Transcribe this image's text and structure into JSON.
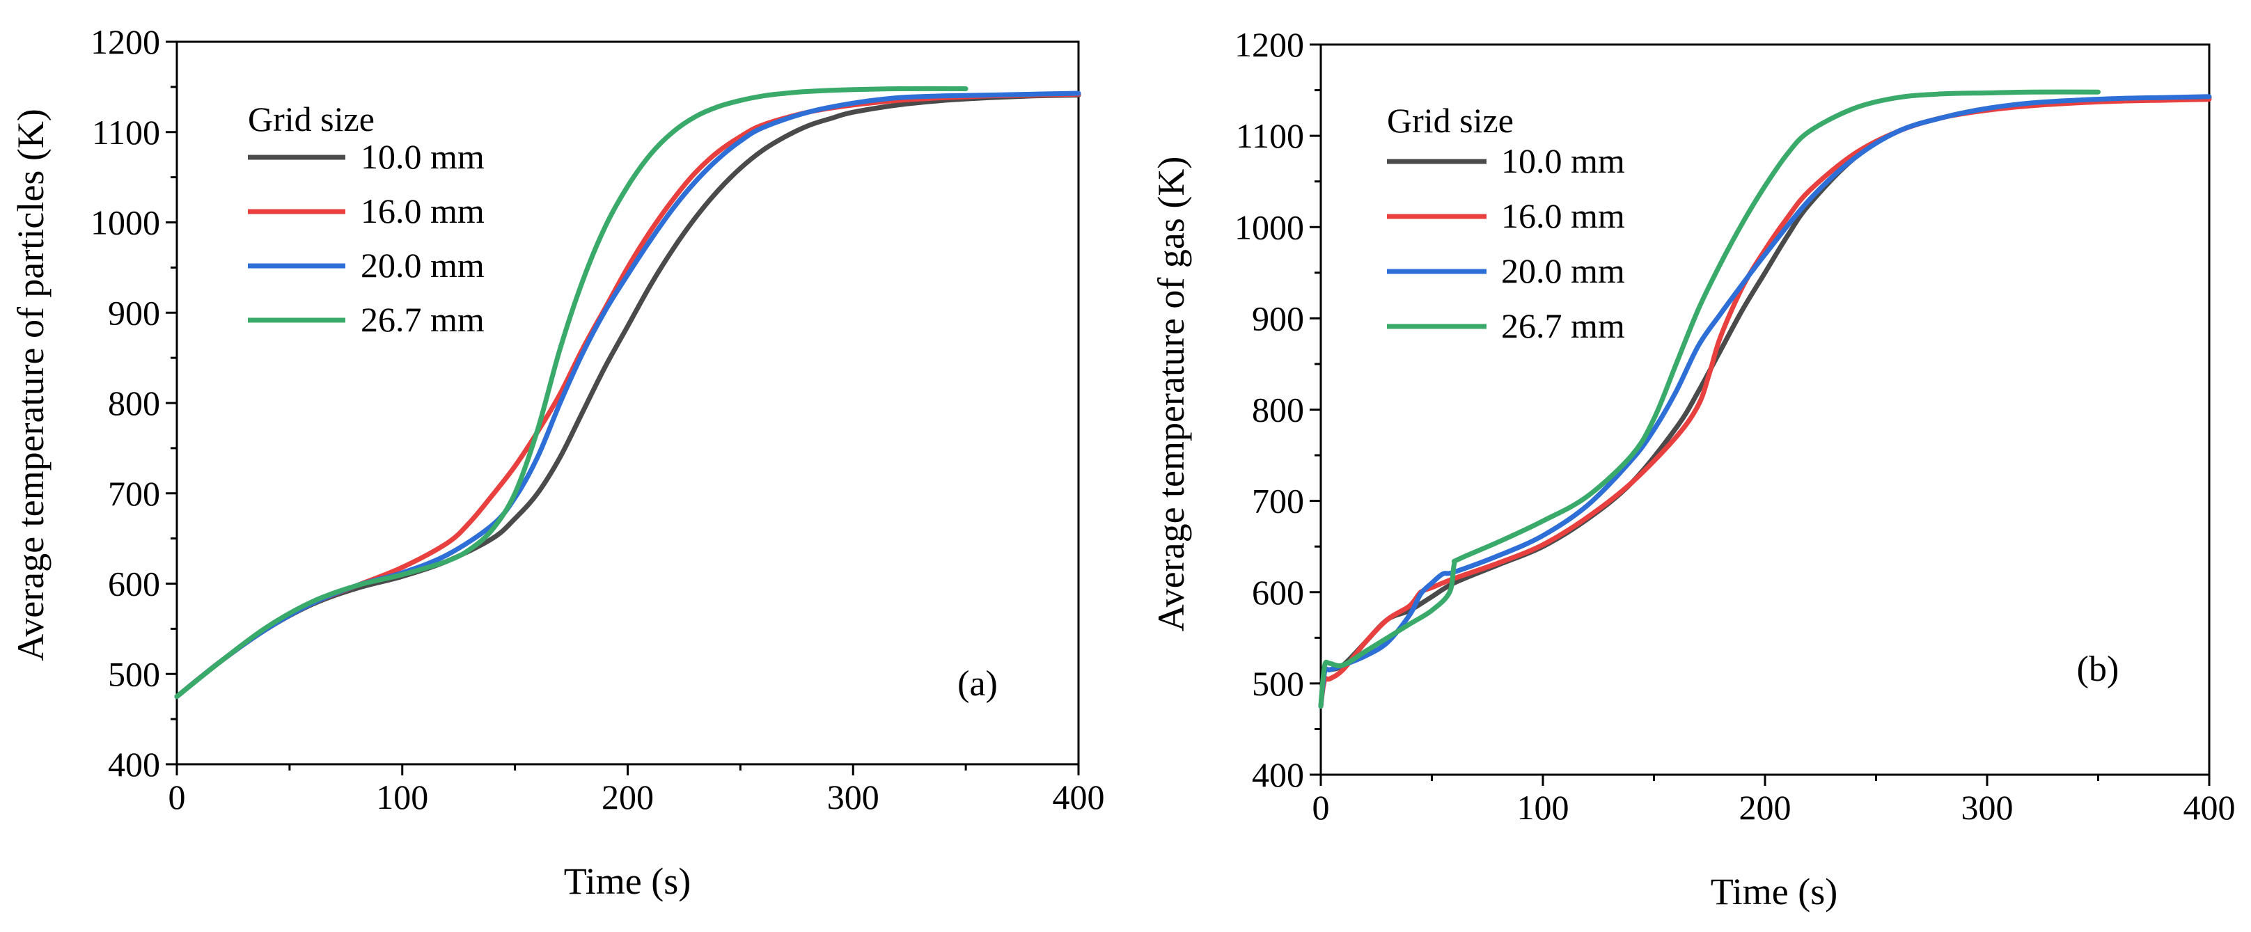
{
  "chart_data": [
    {
      "type": "line",
      "panel_label": "(a)",
      "xlabel": "Time (s)",
      "ylabel": "Average temperature of particles (K)",
      "xlim": [
        0,
        400
      ],
      "ylim": [
        400,
        1200
      ],
      "xticks": [
        0,
        100,
        200,
        300,
        400
      ],
      "yticks": [
        400,
        500,
        600,
        700,
        800,
        900,
        1000,
        1100,
        1200
      ],
      "legend_title": "Grid size",
      "legend_position": "top-left",
      "series": [
        {
          "name": "10.0 mm",
          "color": "#4a4a4a",
          "x": [
            0,
            20,
            40,
            60,
            80,
            100,
            120,
            140,
            150,
            160,
            170,
            180,
            190,
            200,
            210,
            220,
            230,
            240,
            250,
            260,
            270,
            280,
            290,
            300,
            320,
            340,
            360,
            380,
            400
          ],
          "y": [
            475,
            515,
            550,
            577,
            595,
            608,
            625,
            650,
            672,
            700,
            740,
            790,
            840,
            885,
            930,
            970,
            1005,
            1035,
            1060,
            1080,
            1095,
            1107,
            1115,
            1122,
            1130,
            1135,
            1138,
            1140,
            1141
          ]
        },
        {
          "name": "16.0 mm",
          "color": "#e8403f",
          "x": [
            0,
            20,
            40,
            60,
            80,
            100,
            120,
            130,
            140,
            150,
            160,
            170,
            180,
            190,
            200,
            210,
            220,
            230,
            240,
            250,
            260,
            280,
            300,
            320,
            340,
            360,
            380,
            400
          ],
          "y": [
            475,
            515,
            550,
            578,
            598,
            618,
            645,
            668,
            698,
            730,
            768,
            810,
            860,
            905,
            950,
            990,
            1025,
            1055,
            1078,
            1095,
            1108,
            1122,
            1130,
            1135,
            1138,
            1140,
            1141,
            1142
          ]
        },
        {
          "name": "20.0 mm",
          "color": "#2d6fd6",
          "x": [
            0,
            20,
            40,
            60,
            80,
            100,
            120,
            140,
            150,
            160,
            170,
            180,
            190,
            200,
            210,
            220,
            230,
            240,
            250,
            260,
            280,
            300,
            320,
            340,
            360,
            380,
            400
          ],
          "y": [
            475,
            515,
            550,
            578,
            598,
            612,
            632,
            665,
            695,
            740,
            800,
            855,
            902,
            942,
            980,
            1015,
            1045,
            1070,
            1090,
            1105,
            1122,
            1132,
            1138,
            1140,
            1141,
            1142,
            1143
          ]
        },
        {
          "name": "26.7 mm",
          "color": "#3aaa6a",
          "x": [
            0,
            20,
            40,
            60,
            80,
            100,
            120,
            130,
            140,
            150,
            160,
            170,
            180,
            190,
            200,
            210,
            220,
            230,
            240,
            250,
            260,
            270,
            280,
            300,
            320,
            350
          ],
          "y": [
            475,
            515,
            552,
            580,
            598,
            610,
            625,
            638,
            660,
            700,
            770,
            860,
            935,
            995,
            1040,
            1075,
            1100,
            1117,
            1128,
            1135,
            1140,
            1143,
            1145,
            1147,
            1148,
            1148
          ]
        }
      ]
    },
    {
      "type": "line",
      "panel_label": "(b)",
      "xlabel": "Time (s)",
      "ylabel": "Average temperature of gas (K)",
      "xlim": [
        0,
        400
      ],
      "ylim": [
        400,
        1200
      ],
      "xticks": [
        0,
        100,
        200,
        300,
        400
      ],
      "yticks": [
        400,
        500,
        600,
        700,
        800,
        900,
        1000,
        1100,
        1200
      ],
      "legend_title": "Grid size",
      "legend_position": "top-left",
      "series": [
        {
          "name": "10.0 mm",
          "color": "#4a4a4a",
          "x": [
            0,
            1,
            2,
            4,
            10,
            20,
            30,
            40,
            50,
            60,
            80,
            100,
            120,
            140,
            160,
            170,
            180,
            190,
            200,
            210,
            220,
            240,
            260,
            280,
            300,
            320,
            340,
            360,
            380,
            400
          ],
          "y": [
            475,
            500,
            515,
            515,
            520,
            545,
            570,
            580,
            595,
            610,
            630,
            650,
            680,
            720,
            780,
            820,
            865,
            910,
            950,
            990,
            1025,
            1075,
            1105,
            1120,
            1130,
            1135,
            1138,
            1140,
            1141,
            1142
          ]
        },
        {
          "name": "16.0 mm",
          "color": "#e8403f",
          "x": [
            0,
            1,
            2,
            4,
            10,
            20,
            30,
            40,
            45,
            50,
            60,
            80,
            100,
            120,
            140,
            160,
            170,
            175,
            180,
            190,
            200,
            210,
            220,
            240,
            260,
            280,
            300,
            320,
            340,
            360,
            380,
            400
          ],
          "y": [
            475,
            495,
            505,
            505,
            515,
            545,
            570,
            585,
            600,
            605,
            615,
            632,
            652,
            682,
            720,
            770,
            805,
            840,
            880,
            935,
            975,
            1010,
            1040,
            1080,
            1105,
            1120,
            1128,
            1133,
            1136,
            1138,
            1139,
            1140
          ]
        },
        {
          "name": "20.0 mm",
          "color": "#2d6fd6",
          "x": [
            0,
            1,
            2,
            4,
            10,
            20,
            30,
            40,
            45,
            50,
            55,
            60,
            80,
            100,
            120,
            140,
            150,
            160,
            170,
            180,
            190,
            200,
            220,
            240,
            260,
            280,
            300,
            320,
            340,
            360,
            380,
            400
          ],
          "y": [
            475,
            500,
            515,
            515,
            520,
            530,
            545,
            575,
            598,
            610,
            620,
            622,
            640,
            662,
            695,
            745,
            778,
            820,
            870,
            905,
            938,
            970,
            1030,
            1075,
            1105,
            1120,
            1130,
            1136,
            1139,
            1141,
            1142,
            1143
          ]
        },
        {
          "name": "26.7 mm",
          "color": "#3aaa6a",
          "x": [
            0,
            1,
            2,
            4,
            10,
            20,
            30,
            40,
            50,
            58,
            60,
            62,
            80,
            100,
            120,
            140,
            150,
            160,
            170,
            180,
            190,
            200,
            210,
            220,
            240,
            260,
            280,
            300,
            320,
            350
          ],
          "y": [
            475,
            505,
            522,
            522,
            520,
            535,
            550,
            565,
            580,
            600,
            630,
            636,
            655,
            678,
            705,
            750,
            790,
            850,
            910,
            960,
            1005,
            1045,
            1080,
            1105,
            1130,
            1142,
            1146,
            1147,
            1148,
            1148
          ]
        }
      ]
    }
  ]
}
